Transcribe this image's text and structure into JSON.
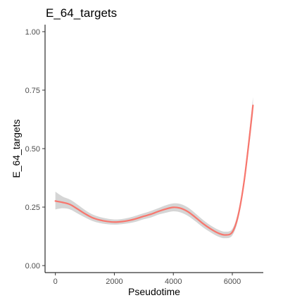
{
  "chart_data": {
    "type": "line",
    "title": "E_64_targets",
    "xlabel": "Pseudotime",
    "ylabel": "E_64_targets",
    "xlim": [
      -350,
      7050
    ],
    "ylim": [
      -0.03,
      1.03
    ],
    "x_ticks": [
      0,
      2000,
      4000,
      6000
    ],
    "x_tick_labels": [
      "0",
      "2000",
      "4000",
      "6000"
    ],
    "y_ticks": [
      0,
      0.25,
      0.5,
      0.75,
      1.0
    ],
    "y_tick_labels": [
      "0.00",
      "0.25",
      "0.50",
      "0.75",
      "1.00"
    ],
    "grid": false,
    "legend": "none",
    "series": [
      {
        "style": "smooth-with-confidence-band",
        "color": "#F8766D",
        "band_color": "#BEBEBE",
        "x": [
          0,
          250,
          500,
          750,
          1000,
          1250,
          1500,
          1750,
          2000,
          2250,
          2500,
          2750,
          3000,
          3250,
          3500,
          3750,
          4000,
          4250,
          4500,
          4750,
          5000,
          5250,
          5500,
          5750,
          6000,
          6200,
          6400,
          6600,
          6700
        ],
        "y": [
          0.276,
          0.27,
          0.261,
          0.242,
          0.222,
          0.205,
          0.195,
          0.189,
          0.186,
          0.188,
          0.193,
          0.201,
          0.211,
          0.22,
          0.232,
          0.242,
          0.249,
          0.245,
          0.23,
          0.206,
          0.18,
          0.158,
          0.14,
          0.131,
          0.143,
          0.215,
          0.36,
          0.57,
          0.685
        ],
        "upper": [
          0.316,
          0.295,
          0.282,
          0.261,
          0.238,
          0.219,
          0.208,
          0.201,
          0.197,
          0.199,
          0.205,
          0.214,
          0.224,
          0.234,
          0.246,
          0.258,
          0.266,
          0.263,
          0.248,
          0.223,
          0.196,
          0.173,
          0.155,
          0.145,
          0.157,
          0.232,
          0.38,
          0.6,
          0.72
        ],
        "lower": [
          0.24,
          0.245,
          0.24,
          0.223,
          0.206,
          0.191,
          0.182,
          0.177,
          0.175,
          0.177,
          0.181,
          0.188,
          0.198,
          0.206,
          0.218,
          0.226,
          0.232,
          0.227,
          0.212,
          0.189,
          0.164,
          0.143,
          0.125,
          0.117,
          0.129,
          0.198,
          0.34,
          0.54,
          0.65
        ]
      }
    ]
  }
}
